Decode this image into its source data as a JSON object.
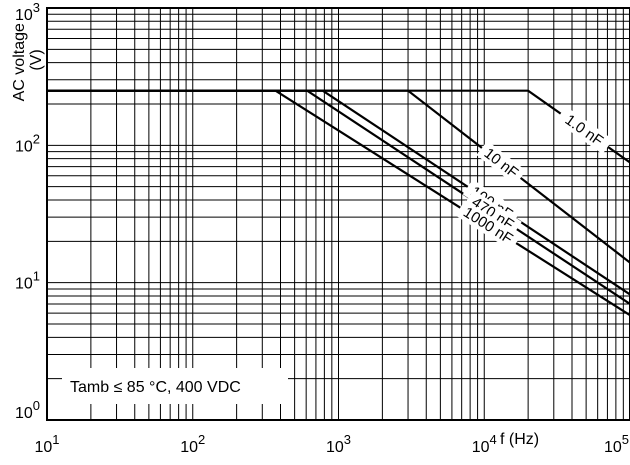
{
  "chart_data": {
    "type": "line",
    "x_scale": "log",
    "y_scale": "log",
    "xlim": [
      10,
      100000
    ],
    "ylim": [
      1,
      1000
    ],
    "xlabel": "f (Hz)",
    "ylabel_lines": [
      "AC voltage",
      "(V)"
    ],
    "x_ticks": [
      {
        "base": "10",
        "exp": "1"
      },
      {
        "base": "10",
        "exp": "2"
      },
      {
        "base": "10",
        "exp": "3"
      },
      {
        "base": "10",
        "exp": "4"
      },
      {
        "base": "10",
        "exp": "5"
      }
    ],
    "y_ticks": [
      {
        "base": "10",
        "exp": "0"
      },
      {
        "base": "10",
        "exp": "1"
      },
      {
        "base": "10",
        "exp": "2"
      },
      {
        "base": "10",
        "exp": "3"
      }
    ],
    "annotation": "Tamb  ≤ 85 °C, 400 VDC",
    "grid": true,
    "series": [
      {
        "name": "1.0 nF",
        "points": [
          [
            10,
            250
          ],
          [
            20000,
            250
          ],
          [
            100000,
            75
          ]
        ]
      },
      {
        "name": "10 nF",
        "points": [
          [
            10,
            250
          ],
          [
            3000,
            250
          ],
          [
            100000,
            14
          ]
        ]
      },
      {
        "name": "100 nF",
        "points": [
          [
            10,
            250
          ],
          [
            780,
            250
          ],
          [
            100000,
            8.2
          ]
        ]
      },
      {
        "name": "470 nF",
        "points": [
          [
            10,
            250
          ],
          [
            610,
            250
          ],
          [
            100000,
            7.0
          ]
        ]
      },
      {
        "name": "1000 nF",
        "points": [
          [
            10,
            250
          ],
          [
            370,
            250
          ],
          [
            100000,
            5.8
          ]
        ]
      }
    ]
  }
}
